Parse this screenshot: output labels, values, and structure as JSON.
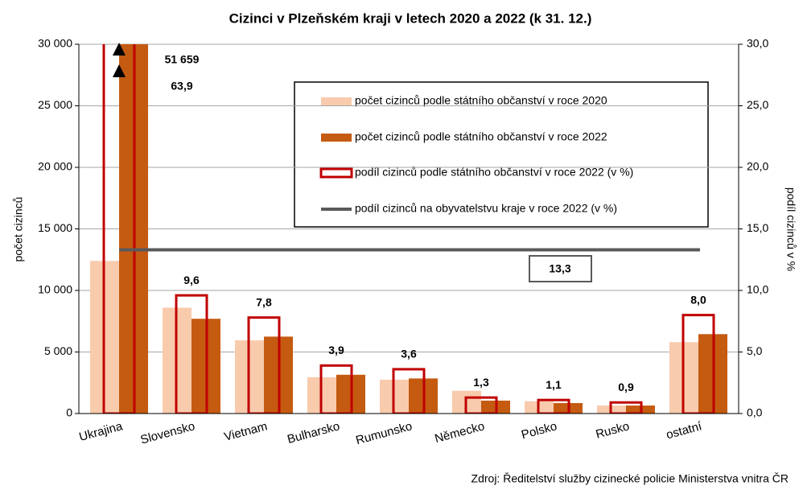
{
  "chart_data": {
    "type": "bar",
    "title": "Cizinci  v Plzeňském kraji v letech 2020 a 2022 (k 31. 12.)",
    "ylabel": "počet cizinců",
    "y2label": "podíl cizinců v %",
    "source": "Zdroj:  Ředitelství  služby cizinecké policie Ministerstva  vnitra ČR",
    "categories": [
      "Ukrajina",
      "Slovensko",
      "Vietnam",
      "Bulharsko",
      "Rumunsko",
      "Německo",
      "Polsko",
      "Rusko",
      "ostatní"
    ],
    "series": [
      {
        "name": "počet cizinců podle státního občanství v roce 2020",
        "color": "#f8cbad",
        "values": [
          12400,
          8600,
          5950,
          2950,
          2750,
          1850,
          1000,
          650,
          5800
        ]
      },
      {
        "name": "počet cizinců podle státního občanství v roce 2022",
        "color": "#c55a11",
        "values": [
          51659,
          7700,
          6250,
          3150,
          2850,
          1050,
          850,
          650,
          6450
        ],
        "value_labels": [
          "51 659",
          null,
          null,
          null,
          null,
          null,
          null,
          null,
          null
        ]
      },
      {
        "name": "podíl cizinců podle státního občanství v roce 2022 (v %)",
        "color": "#c00000",
        "axis": "y2",
        "style": "outline",
        "values": [
          63.9,
          9.6,
          7.8,
          3.9,
          3.6,
          1.3,
          1.1,
          0.9,
          8.0
        ],
        "value_labels": [
          "63,9",
          "9,6",
          "7,8",
          "3,9",
          "3,6",
          "1,3",
          "1,1",
          "0,9",
          "8,0"
        ]
      }
    ],
    "reference_line": {
      "name": "podíl cizinců na obyvatelstvu kraje v roce 2022 (v %)",
      "color": "#595959",
      "axis": "y2",
      "value": 13.3,
      "value_label": "13,3"
    },
    "ylim": [
      0,
      30000
    ],
    "yticks": [
      0,
      {
        "value": 5000,
        "label": "5 000"
      },
      {
        "value": 10000,
        "label": "10 000"
      },
      {
        "value": 15000,
        "label": "15 000"
      },
      {
        "value": 20000,
        "label": "20 000"
      },
      {
        "value": 25000,
        "label": "25 000"
      },
      {
        "value": 30000,
        "label": "30 000"
      }
    ],
    "y2lim": [
      0,
      30
    ],
    "y2ticks": [
      {
        "value": 0,
        "label": "0,0"
      },
      {
        "value": 5,
        "label": "5,0"
      },
      {
        "value": 10,
        "label": "10,0"
      },
      {
        "value": 15,
        "label": "15,0"
      },
      {
        "value": 20,
        "label": "20,0"
      },
      {
        "value": 25,
        "label": "25,0"
      },
      {
        "value": 30,
        "label": "30,0"
      }
    ],
    "grid": true
  }
}
